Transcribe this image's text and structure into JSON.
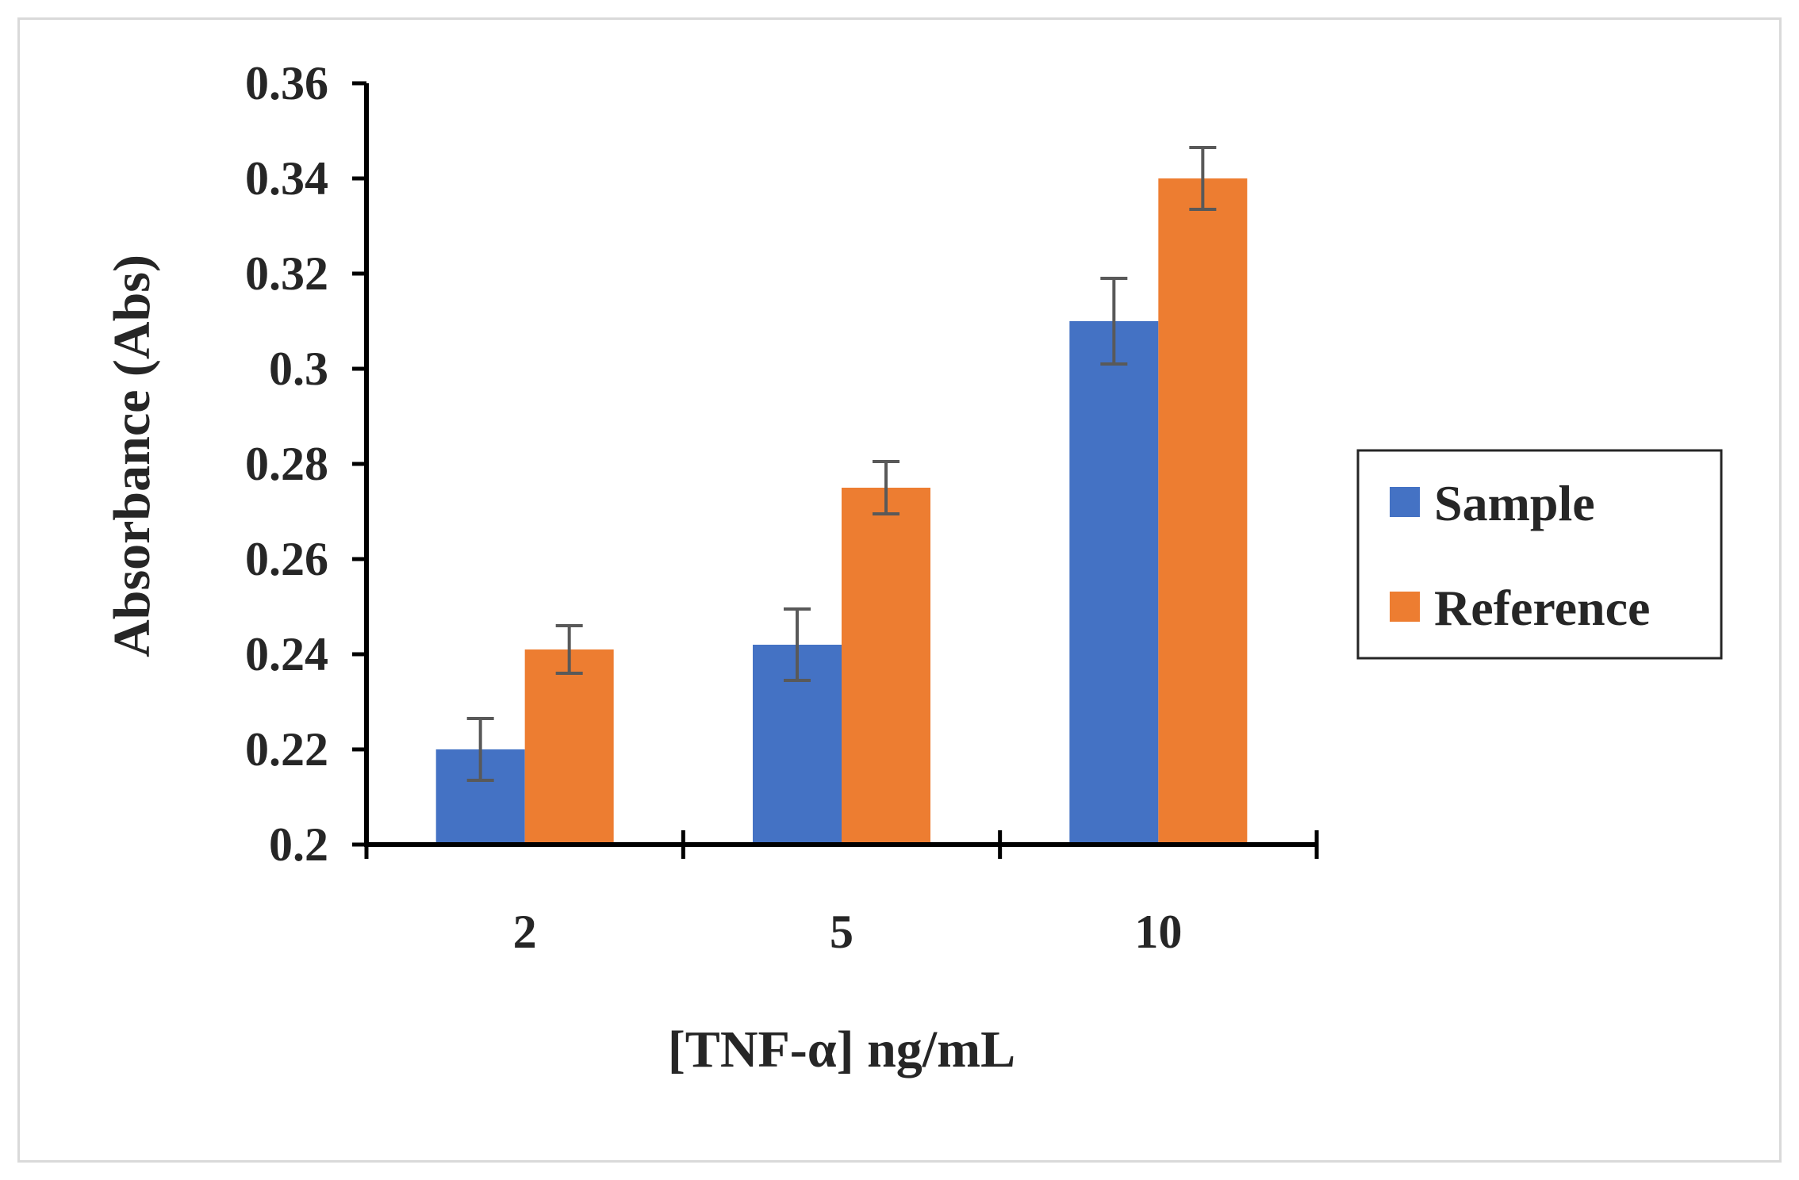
{
  "chart_data": {
    "type": "bar",
    "title": "",
    "xlabel": "[TNF-α] ng/mL",
    "ylabel": "Absorbance  (Abs)",
    "categories": [
      "2",
      "5",
      "10"
    ],
    "series": [
      {
        "name": "Sample",
        "color": "#4472C4",
        "values": [
          0.22,
          0.242,
          0.31
        ],
        "errors": [
          0.0065,
          0.0075,
          0.009
        ]
      },
      {
        "name": "Reference",
        "color": "#ED7D31",
        "values": [
          0.241,
          0.275,
          0.34
        ],
        "errors": [
          0.005,
          0.0055,
          0.0065
        ]
      }
    ],
    "ylim": [
      0.2,
      0.36
    ],
    "yticks": [
      0.2,
      0.22,
      0.24,
      0.26,
      0.28,
      0.3,
      0.32,
      0.34,
      0.36
    ],
    "ytick_labels": [
      "0.2",
      "0.22",
      "0.24",
      "0.26",
      "0.28",
      "0.3",
      "0.32",
      "0.34",
      "0.36"
    ],
    "grid": false,
    "legend": "right",
    "error_bar_color": "#595959"
  }
}
